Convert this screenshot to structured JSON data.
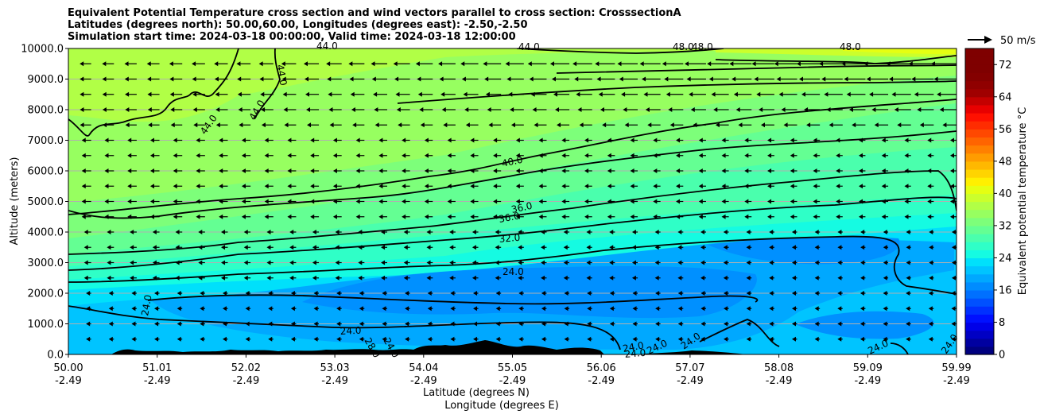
{
  "title_lines": [
    "Equivalent Potential Temperature cross section and wind vectors parallel to cross section: CrosssectionA",
    "Latitudes (degrees north): 50.00,60.00, Longitudes (degrees east): -2.50,-2.50",
    "Simulation start time: 2024-03-18 00:00:00, Valid time: 2024-03-18 12:00:00"
  ],
  "chart_data": {
    "type": "contour",
    "title": "Equivalent Potential Temperature cross section and wind vectors parallel to cross section: CrosssectionA",
    "ylabel": "Altitude (meters)",
    "xlabel": "Latitude (degrees N)",
    "xlabel2": "Longitude (degrees E)",
    "ylim": [
      0,
      10000
    ],
    "yticks": [
      "0.0",
      "1000.0",
      "2000.0",
      "3000.0",
      "4000.0",
      "5000.0",
      "6000.0",
      "7000.0",
      "8000.0",
      "9000.0",
      "10000.0"
    ],
    "xticks": [
      {
        "lat": "50.00",
        "lon": "-2.49"
      },
      {
        "lat": "51.01",
        "lon": "-2.49"
      },
      {
        "lat": "52.02",
        "lon": "-2.49"
      },
      {
        "lat": "53.03",
        "lon": "-2.49"
      },
      {
        "lat": "54.04",
        "lon": "-2.49"
      },
      {
        "lat": "55.05",
        "lon": "-2.49"
      },
      {
        "lat": "56.06",
        "lon": "-2.49"
      },
      {
        "lat": "57.07",
        "lon": "-2.49"
      },
      {
        "lat": "58.08",
        "lon": "-2.49"
      },
      {
        "lat": "59.09",
        "lon": "-2.49"
      },
      {
        "lat": "59.99",
        "lon": "-2.49"
      }
    ],
    "colorbar": {
      "label": "Equivalent potential temperature °C",
      "min": 0,
      "max": 76,
      "step": 2,
      "ticks": [
        "0",
        "8",
        "16",
        "24",
        "32",
        "40",
        "48",
        "56",
        "64",
        "72"
      ],
      "colors": [
        "#00007f",
        "#0000a0",
        "#0000c4",
        "#0000e8",
        "#0010ff",
        "#0030ff",
        "#0050ff",
        "#0070ff",
        "#008cff",
        "#00a8ff",
        "#00c4ff",
        "#00e0fb",
        "#15fbe2",
        "#2fffc7",
        "#4affad",
        "#64ff93",
        "#7dff7a",
        "#97ff60",
        "#b1ff46",
        "#cbff2c",
        "#e5ff12",
        "#fff000",
        "#ffd400",
        "#ffb800",
        "#ff9c00",
        "#ff8000",
        "#ff6400",
        "#ff4800",
        "#ff2c00",
        "#ff1000",
        "#e80000",
        "#c40000",
        "#a00000",
        "#900000",
        "#840000",
        "#7f0000",
        "#7f0000",
        "#7f0000"
      ]
    },
    "contour_labels": [
      "44.0",
      "44.0",
      "44.0",
      "44.0",
      "44.0",
      "48.0",
      "48.0",
      "48.0",
      "40.0",
      "36.0",
      "36.0",
      "32.0",
      "24.0",
      "24.0",
      "24.0",
      "28.0",
      "24.0",
      "24.0",
      "24.0",
      "24.0",
      "24.0",
      "24.0",
      "24.0"
    ],
    "wind_key": "50 m/s",
    "colors": {
      "terrain": "#000000",
      "contour": "#000000"
    }
  }
}
